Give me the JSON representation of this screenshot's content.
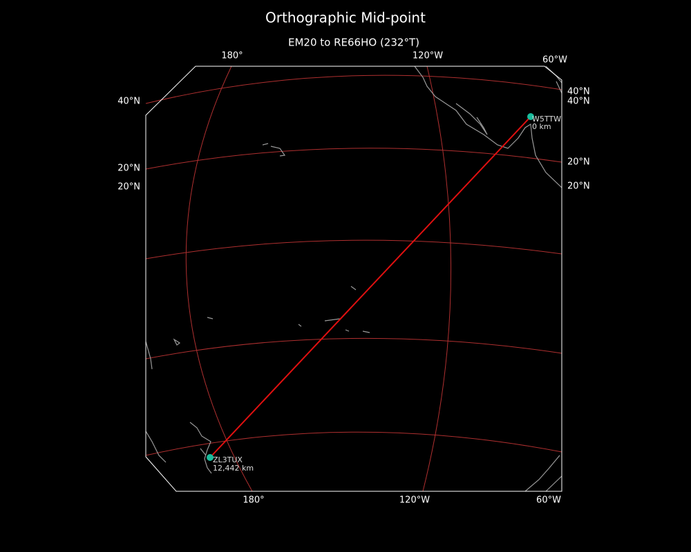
{
  "title": "Orthographic Mid-point",
  "subtitle": "EM20 to RE66HO (232°T)",
  "axis_labels": {
    "top": [
      "180°",
      "120°W",
      "60°W"
    ],
    "bottom": [
      "180°",
      "120°W",
      "60°W"
    ],
    "left": [
      "40°N",
      "20°N",
      "20°N"
    ],
    "right": [
      "40°N",
      "40°N",
      "20°N",
      "20°N"
    ]
  },
  "stations": [
    {
      "call": "W5TTW",
      "distance": "0 km"
    },
    {
      "call": "ZL3TUX",
      "distance": "12,442 km"
    }
  ]
}
